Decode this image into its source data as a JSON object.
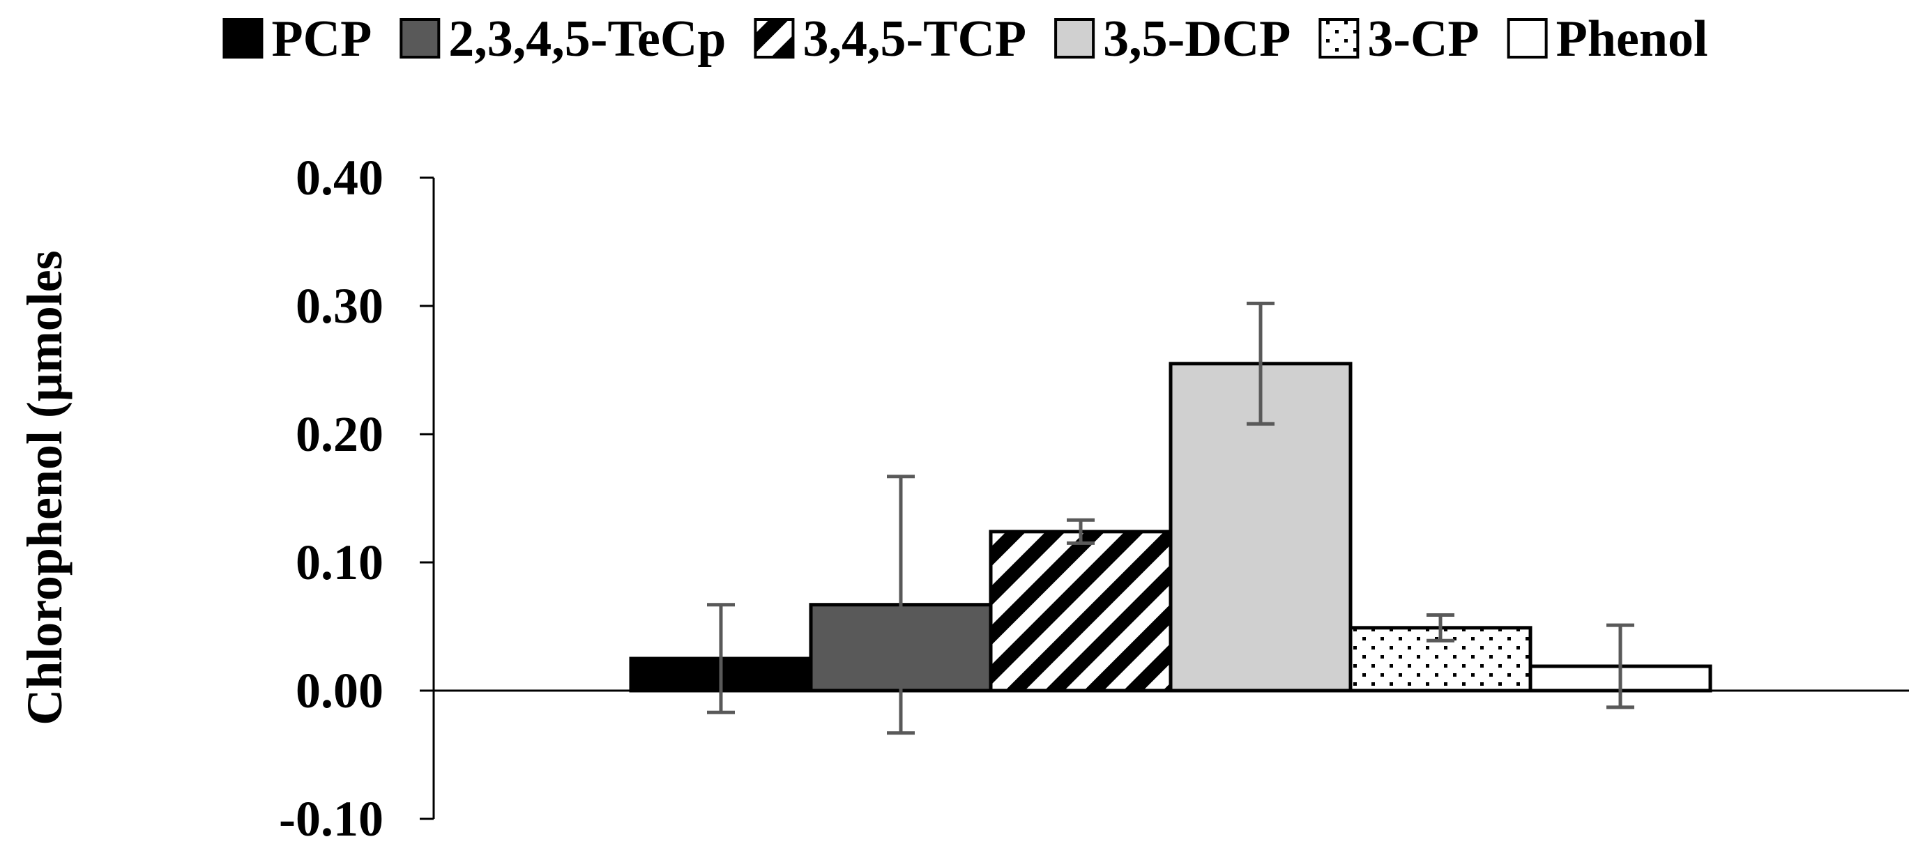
{
  "chart_data": {
    "type": "bar",
    "title": "",
    "xlabel": "",
    "ylabel": "Chlorophenol (μmoles",
    "ylim": [
      -0.1,
      0.4
    ],
    "yticks": [
      "0.40",
      "0.30",
      "0.20",
      "0.10",
      "0.00",
      "-0.10"
    ],
    "ytick_values": [
      0.4,
      0.3,
      0.2,
      0.1,
      0.0,
      -0.1
    ],
    "legend_position": "top",
    "series": [
      {
        "name": "PCP",
        "value": 0.025,
        "error": 0.042,
        "fill": "#000000",
        "pattern": "solid"
      },
      {
        "name": "2,3,4,5-TeCp",
        "value": 0.067,
        "error": 0.1,
        "fill": "#595959",
        "pattern": "solid"
      },
      {
        "name": "3,4,5-TCP",
        "value": 0.124,
        "error": 0.009,
        "fill": "#ffffff",
        "pattern": "diagonal"
      },
      {
        "name": "3,5-DCP",
        "value": 0.255,
        "error": 0.047,
        "fill": "#d0d0d0",
        "pattern": "solid"
      },
      {
        "name": "3-CP",
        "value": 0.049,
        "error": 0.01,
        "fill": "#ffffff",
        "pattern": "dots"
      },
      {
        "name": "Phenol",
        "value": 0.019,
        "error": 0.032,
        "fill": "#ffffff",
        "pattern": "solid"
      }
    ],
    "error_bar_color": "#595959",
    "grid": false
  }
}
